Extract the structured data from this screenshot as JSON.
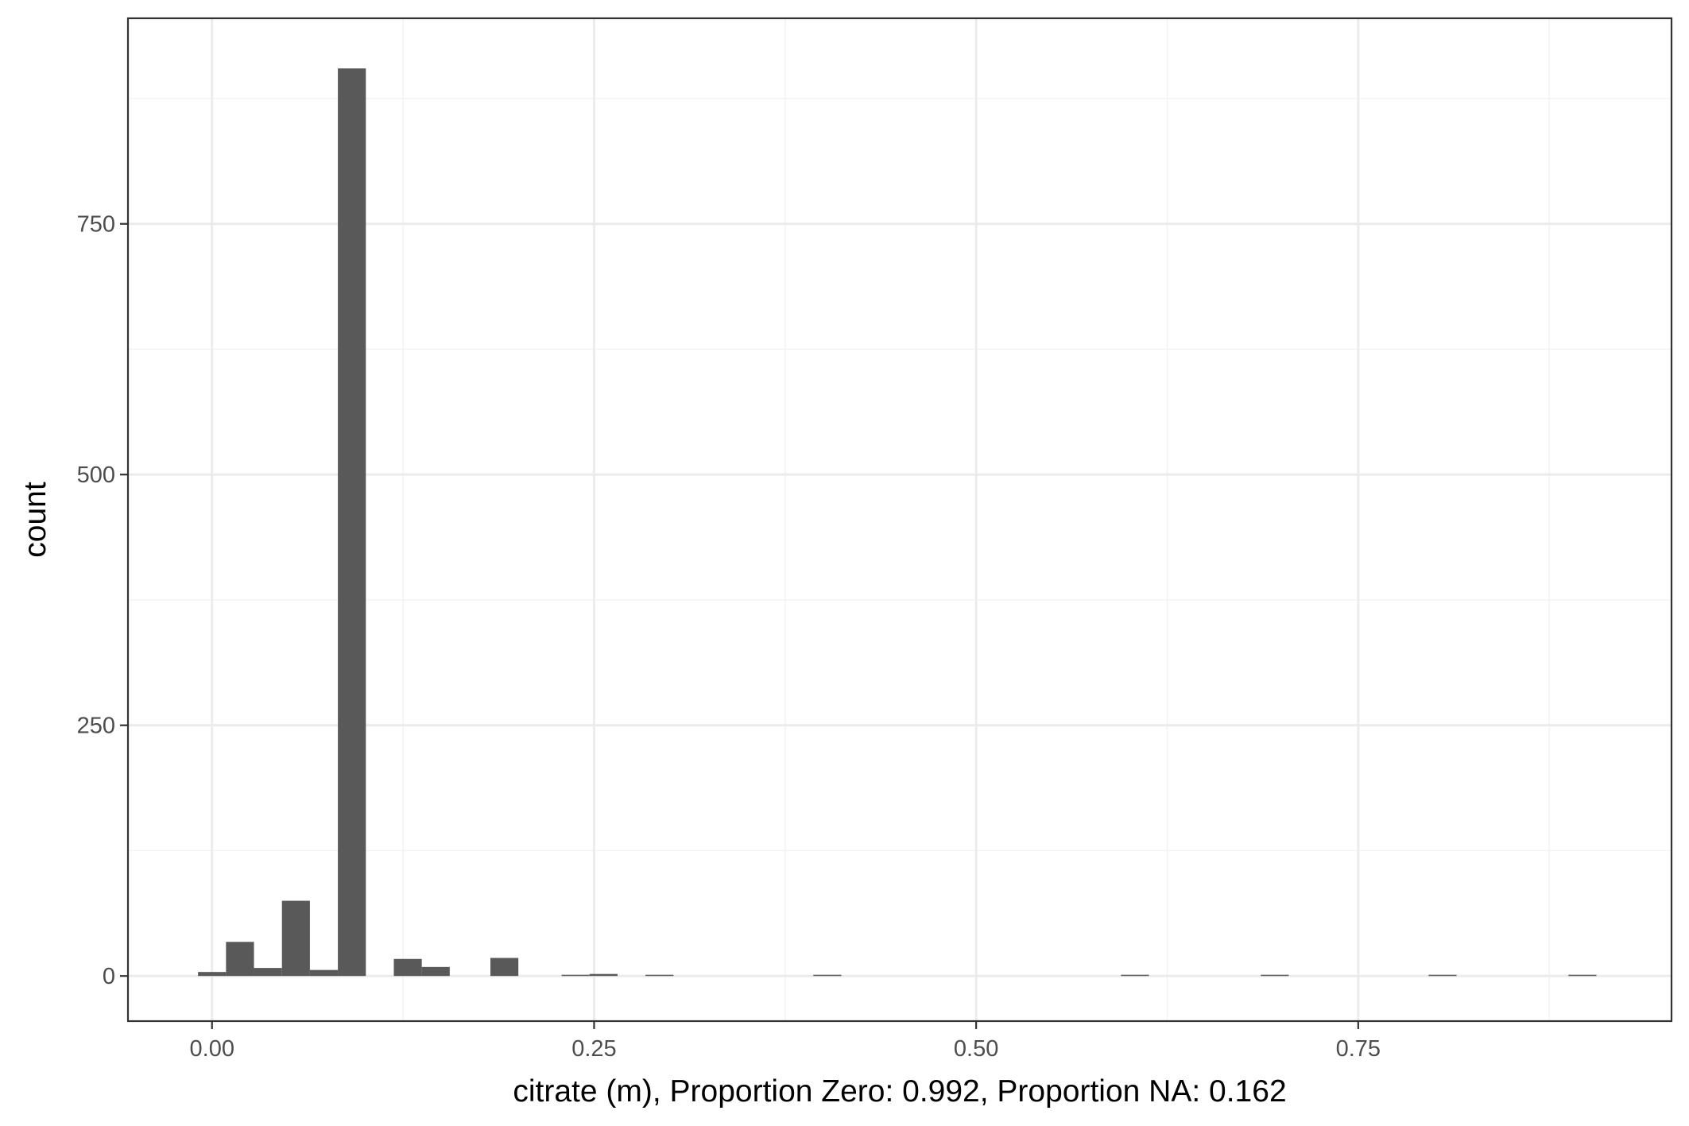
{
  "chart_data": {
    "type": "bar",
    "subtype": "histogram",
    "xlabel": "citrate (m), Proportion Zero: 0.992, Proportion NA: 0.162",
    "ylabel": "count",
    "xlim": [
      -0.055,
      0.955
    ],
    "ylim": [
      -45,
      955
    ],
    "x_ticks": [
      0.0,
      0.25,
      0.5,
      0.75
    ],
    "x_tick_labels": [
      "0.00",
      "0.25",
      "0.50",
      "0.75"
    ],
    "y_ticks": [
      0,
      250,
      500,
      750
    ],
    "y_tick_labels": [
      "0",
      "250",
      "500",
      "750"
    ],
    "bin_width": 0.0183,
    "bins": [
      {
        "center": 0.0,
        "count": 4
      },
      {
        "center": 0.0183,
        "count": 34
      },
      {
        "center": 0.0366,
        "count": 8
      },
      {
        "center": 0.0549,
        "count": 75
      },
      {
        "center": 0.0732,
        "count": 6
      },
      {
        "center": 0.0915,
        "count": 905
      },
      {
        "center": 0.1281,
        "count": 17
      },
      {
        "center": 0.1464,
        "count": 9
      },
      {
        "center": 0.1913,
        "count": 18
      },
      {
        "center": 0.2379,
        "count": 1
      },
      {
        "center": 0.2562,
        "count": 2
      },
      {
        "center": 0.2928,
        "count": 1
      },
      {
        "center": 0.4026,
        "count": 1
      },
      {
        "center": 0.6039,
        "count": 1
      },
      {
        "center": 0.6954,
        "count": 1
      },
      {
        "center": 0.8052,
        "count": 1
      },
      {
        "center": 0.8967,
        "count": 1
      }
    ],
    "grid": true,
    "theme": "bw",
    "colors": {
      "bar": "#595959",
      "grid_major": "#ebebeb",
      "grid_minor": "#f2f2f2",
      "panel_border": "#333333",
      "tick": "#333333",
      "tick_text": "#4d4d4d",
      "title_text": "#000000"
    }
  }
}
